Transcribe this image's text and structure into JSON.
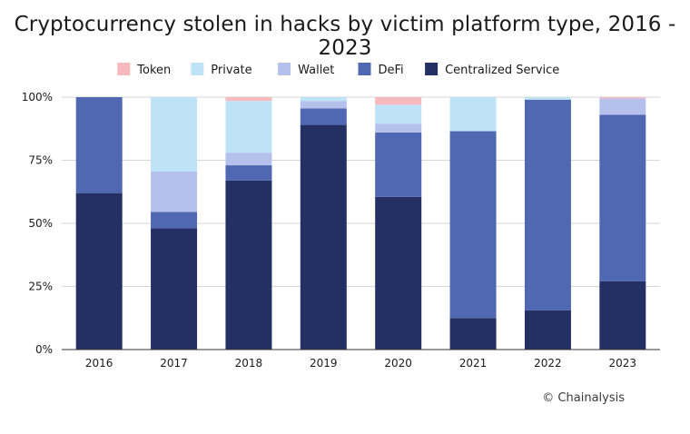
{
  "chart_data": {
    "type": "bar",
    "stacked": true,
    "title": "Cryptocurrency stolen in hacks by victim platform type, 2016 - 2023",
    "xlabel": "",
    "ylabel": "",
    "ylim": [
      0,
      100
    ],
    "yticks": [
      0,
      25,
      50,
      75,
      100
    ],
    "ytick_labels": [
      "0%",
      "25%",
      "50%",
      "75%",
      "100%"
    ],
    "grid": true,
    "legend_position": "top",
    "categories": [
      "2016",
      "2017",
      "2018",
      "2019",
      "2020",
      "2021",
      "2022",
      "2023"
    ],
    "series": [
      {
        "name": "Centralized Service",
        "color": "#243064",
        "values": [
          62,
          48,
          67,
          89,
          60.5,
          12.5,
          15.5,
          27
        ]
      },
      {
        "name": "DeFi",
        "color": "#5067b1",
        "values": [
          38,
          6.5,
          6,
          6.5,
          25.5,
          74,
          83.5,
          66
        ]
      },
      {
        "name": "Wallet",
        "color": "#b5c0ec",
        "values": [
          0,
          16,
          5,
          3,
          3.5,
          0,
          0,
          6.5
        ]
      },
      {
        "name": "Private",
        "color": "#bfe3f6",
        "values": [
          0,
          29.5,
          20.5,
          1.5,
          7.5,
          13.5,
          1,
          0
        ]
      },
      {
        "name": "Token",
        "color": "#f6b9be",
        "values": [
          0,
          0,
          1.5,
          0,
          3,
          0,
          0,
          0.5
        ]
      }
    ],
    "legend_order": [
      "Token",
      "Private",
      "Wallet",
      "DeFi",
      "Centralized Service"
    ]
  },
  "source": "© Chainalysis"
}
